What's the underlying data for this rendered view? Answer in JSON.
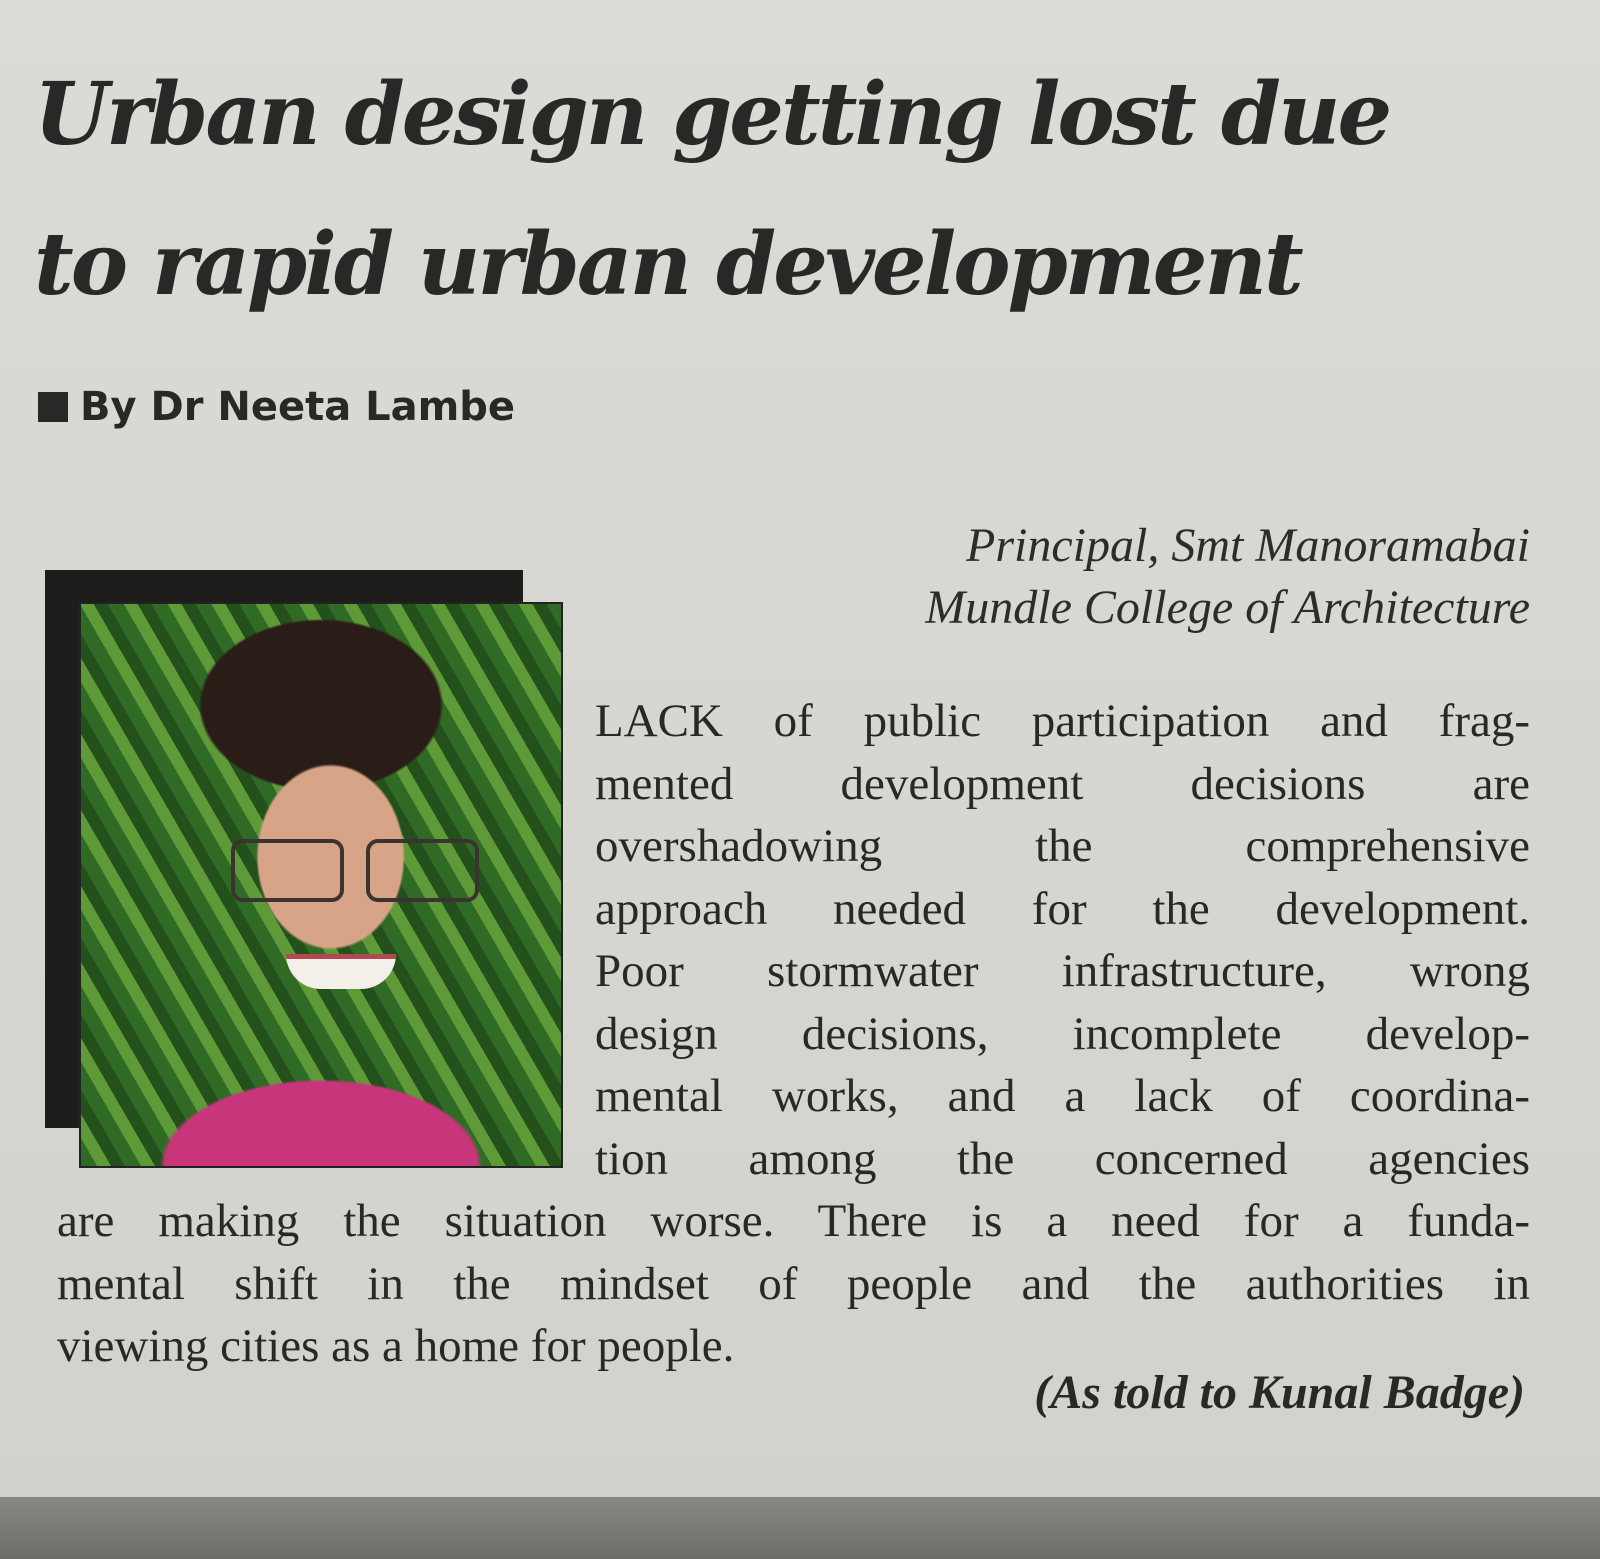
{
  "article": {
    "headline_lines": [
      "Urban design getting lost due",
      "to rapid urban development"
    ],
    "byline": "By Dr Neeta Lambe",
    "affiliation_lines": [
      "Principal, Smt Manoramabai",
      "Mundle College of Architecture"
    ],
    "photo_caption": "",
    "body_narrow_lines": [
      "LACK of public participation and frag-",
      "mented development decisions are",
      "overshadowing the comprehensive",
      "approach needed for the development.",
      "Poor stormwater infrastructure, wrong",
      "design decisions, incomplete develop-",
      "mental works, and a lack of coordina-",
      "tion among the concerned agencies"
    ],
    "body_wide_lines": [
      "are making the situation worse. There is a need for a funda-",
      "mental shift in the mindset of people and the authorities in",
      "viewing cities as a home for people."
    ],
    "credit": "(As told to Kunal Badge)"
  }
}
